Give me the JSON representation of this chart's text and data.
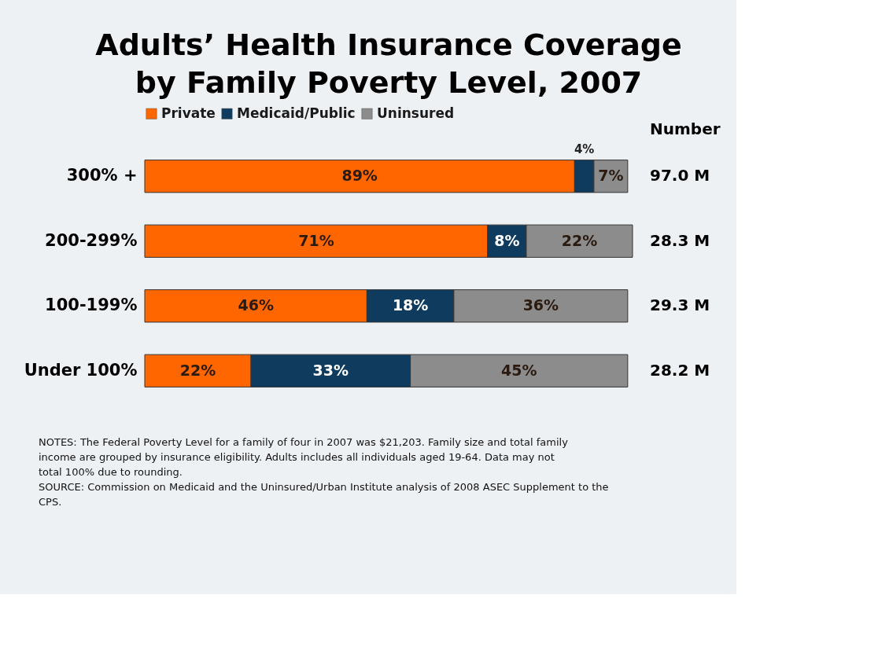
{
  "chart_data": {
    "type": "bar",
    "orientation": "horizontal",
    "stacked": true,
    "title": "Adults’ Health Insurance Coverage by Family Poverty Level, 2007",
    "categories": [
      "300% +",
      "200-299%",
      "100-199%",
      "Under 100%"
    ],
    "series": [
      {
        "name": "Private",
        "color": "#ff6600",
        "values": [
          89,
          71,
          46,
          22
        ],
        "value_labels": [
          "89%",
          "71%",
          "46%",
          "22%"
        ]
      },
      {
        "name": "Medicaid/Public",
        "color": "#0f3b5f",
        "values": [
          4,
          8,
          18,
          33
        ],
        "value_labels": [
          "4%",
          "8%",
          "18%",
          "33%"
        ]
      },
      {
        "name": "Uninsured",
        "color": "#8c8c8c",
        "values": [
          7,
          22,
          36,
          45
        ],
        "value_labels": [
          "7%",
          "22%",
          "36%",
          "45%"
        ]
      }
    ],
    "xlim": [
      0,
      101
    ],
    "tick_labels": "y",
    "legend": "top",
    "annotations": [
      "Number",
      "97.0 M",
      "28.3 M",
      "29.3 M",
      "28.2 M",
      "NOTES: The Federal Poverty Level for a family of four in 2007 was $21,203. Family size and total family income are grouped by insurance eligibility. Adults includes all individuals aged 19-64. Data may not total 100% due to rounding.",
      "SOURCE: Commission on Medicaid and the Uninsured/Urban Institute analysis of 2008 ASEC Supplement to the CPS."
    ]
  }
}
